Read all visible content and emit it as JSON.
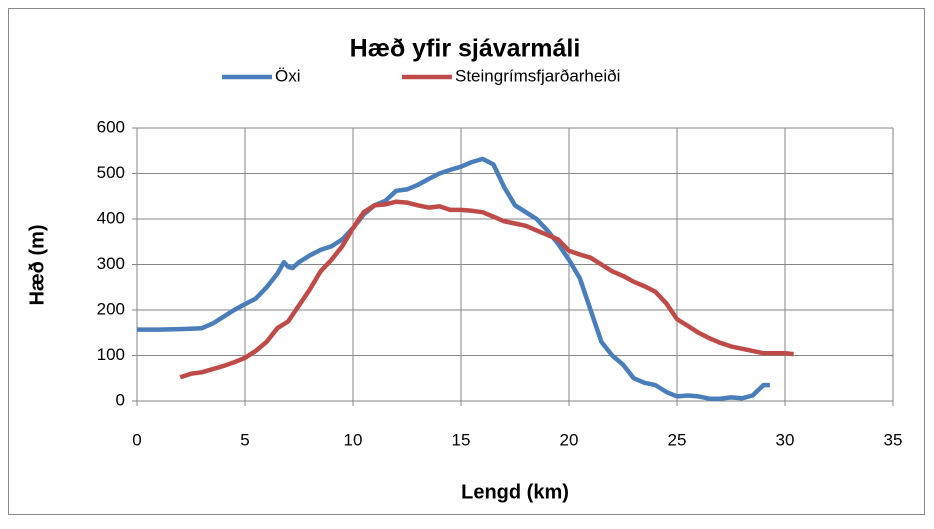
{
  "chart_data": {
    "type": "line",
    "title": "Hæð yfir sjávarmáli",
    "xlabel": "Lengd (km)",
    "ylabel": "Hæð (m)",
    "xlim": [
      0,
      35
    ],
    "xticks": [
      0,
      5,
      10,
      15,
      20,
      25,
      30,
      35
    ],
    "ylim": [
      0,
      600
    ],
    "yticks": [
      0,
      100,
      200,
      300,
      400,
      500,
      600
    ],
    "grid": true,
    "legend": "top",
    "series": [
      {
        "name": "Öxi",
        "color": "#4a7ebb",
        "x": [
          0,
          1,
          2,
          3,
          3.5,
          4,
          4.5,
          5,
          5.5,
          6,
          6.5,
          6.8,
          7,
          7.2,
          7.5,
          8,
          8.5,
          9,
          9.5,
          10,
          10.5,
          11,
          11.5,
          12,
          12.5,
          13,
          13.5,
          14,
          14.5,
          15,
          15.5,
          16,
          16.5,
          17,
          17.5,
          18,
          18.5,
          19,
          19.5,
          20,
          20.5,
          21,
          21.5,
          22,
          22.5,
          23,
          23.5,
          24,
          24.5,
          25,
          25.5,
          26,
          26.5,
          27,
          27.5,
          28,
          28.5,
          29,
          29.3
        ],
        "values": [
          157,
          157,
          158,
          160,
          170,
          185,
          200,
          213,
          225,
          250,
          280,
          305,
          295,
          292,
          305,
          320,
          332,
          340,
          355,
          380,
          410,
          430,
          440,
          462,
          465,
          475,
          488,
          500,
          508,
          515,
          525,
          532,
          520,
          470,
          430,
          415,
          400,
          375,
          345,
          310,
          270,
          200,
          130,
          100,
          80,
          50,
          40,
          35,
          20,
          10,
          12,
          10,
          5,
          5,
          8,
          6,
          12,
          35,
          35
        ]
      },
      {
        "name": "Steingrímsfjarðarheiði",
        "color": "#be4b48",
        "x": [
          2,
          2.5,
          3,
          3.5,
          4,
          4.5,
          5,
          5.5,
          6,
          6.5,
          7,
          7.5,
          8,
          8.5,
          9,
          9.5,
          10,
          10.5,
          11,
          11.5,
          12,
          12.5,
          13,
          13.5,
          14,
          14.5,
          15,
          15.5,
          16,
          16.5,
          17,
          17.5,
          18,
          18.5,
          19,
          19.5,
          20,
          20.5,
          21,
          21.5,
          22,
          22.5,
          23,
          23.5,
          24,
          24.5,
          25,
          25.5,
          26,
          26.5,
          27,
          27.5,
          28,
          28.5,
          29,
          29.5,
          30,
          30.4
        ],
        "values": [
          52,
          60,
          63,
          70,
          77,
          85,
          95,
          110,
          130,
          160,
          175,
          210,
          245,
          285,
          310,
          340,
          380,
          415,
          430,
          432,
          438,
          436,
          430,
          425,
          428,
          420,
          420,
          418,
          415,
          405,
          395,
          390,
          385,
          375,
          365,
          355,
          330,
          322,
          315,
          300,
          285,
          275,
          262,
          252,
          240,
          215,
          180,
          165,
          150,
          138,
          128,
          120,
          115,
          110,
          105,
          105,
          105,
          103
        ]
      }
    ]
  }
}
